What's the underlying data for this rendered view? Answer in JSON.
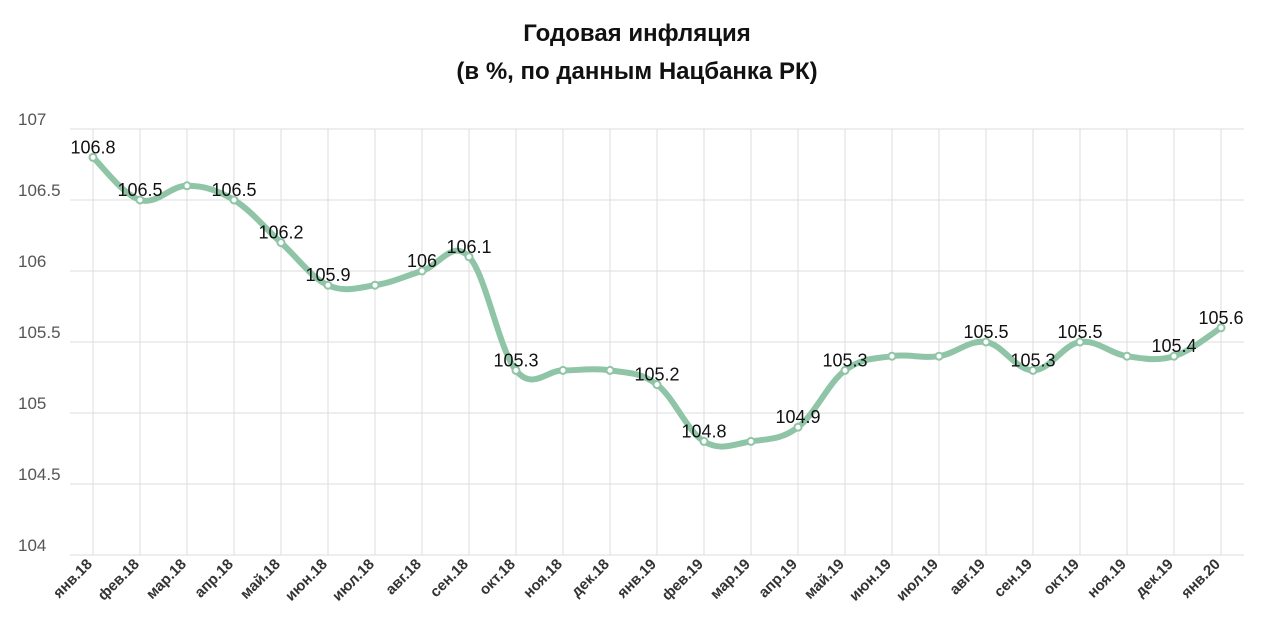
{
  "chart_data": {
    "type": "line",
    "title": "Годовая инфляция",
    "subtitle": "(в %, по данным Нацбанка РК)",
    "categories": [
      "янв.18",
      "фев.18",
      "мар.18",
      "апр.18",
      "май.18",
      "июн.18",
      "июл.18",
      "авг.18",
      "сен.18",
      "окт.18",
      "ноя.18",
      "дек.18",
      "янв.19",
      "фев.19",
      "мар.19",
      "апр.19",
      "май.19",
      "июн.19",
      "июл.19",
      "авг.19",
      "сен.19",
      "окт.19",
      "ноя.19",
      "дек.19",
      "янв.20"
    ],
    "values": [
      106.8,
      106.5,
      106.6,
      106.5,
      106.2,
      105.9,
      105.9,
      106,
      106.1,
      105.3,
      105.3,
      105.3,
      105.2,
      104.8,
      104.8,
      104.9,
      105.3,
      105.4,
      105.4,
      105.5,
      105.3,
      105.5,
      105.4,
      105.4,
      105.6
    ],
    "labels": [
      "106.8",
      "106.5",
      "",
      "106.5",
      "106.2",
      "105.9",
      "",
      "106",
      "106.1",
      "105.3",
      "",
      "",
      "105.2",
      "104.8",
      "",
      "104.9",
      "105.3",
      "",
      "",
      "105.5",
      "105.3",
      "105.5",
      "",
      "105.4",
      "105.6"
    ],
    "y_ticks": [
      "104",
      "104.5",
      "105",
      "105.5",
      "106",
      "106.5",
      "107"
    ],
    "ylim": [
      104,
      107
    ],
    "grid": true,
    "legend": "none",
    "color": "#8fc5a6"
  }
}
